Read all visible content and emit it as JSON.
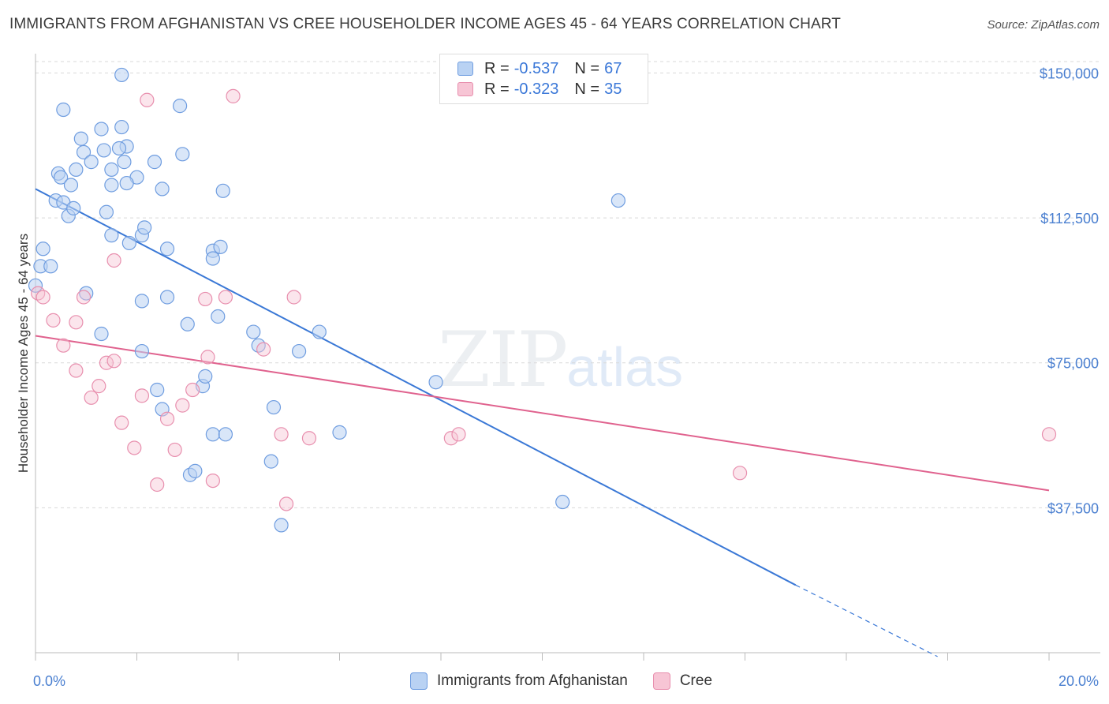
{
  "title": "IMMIGRANTS FROM AFGHANISTAN VS CREE HOUSEHOLDER INCOME AGES 45 - 64 YEARS CORRELATION CHART",
  "source": "Source: ZipAtlas.com",
  "watermark": {
    "zip": "ZIP",
    "atlas": "atlas"
  },
  "colors": {
    "blue": "#4a7fd0",
    "blue_fill": "#b9d2f3",
    "blue_line": "#3a78d6",
    "pink": "#e06a93",
    "pink_fill": "#f7c5d5",
    "pink_line": "#e0628e",
    "tick_label": "#4a7fd0"
  },
  "legend": {
    "rows": [
      {
        "r_label": "R =",
        "r_value": "-0.537",
        "n_label": "N =",
        "n_value": "67"
      },
      {
        "r_label": "R =",
        "r_value": "-0.323",
        "n_label": "N =",
        "n_value": "35"
      }
    ]
  },
  "bottom_legend": [
    "Immigrants from Afghanistan",
    "Cree"
  ],
  "chart_data": {
    "type": "scatter",
    "ylabel": "Householder Income Ages 45 - 64 years",
    "xlabel": "",
    "xlim": [
      0,
      20
    ],
    "ylim": [
      0,
      155000
    ],
    "x_tick_labels": [
      "0.0%",
      "20.0%"
    ],
    "y_ticks": [
      37500,
      75000,
      112500,
      150000
    ],
    "y_tick_labels": [
      "$37,500",
      "$75,000",
      "$112,500",
      "$150,000"
    ],
    "grid": true,
    "series": [
      {
        "name": "Immigrants from Afghanistan",
        "color": "#4a7fd0",
        "points": [
          [
            0.0,
            95000
          ],
          [
            0.1,
            100000
          ],
          [
            0.15,
            104500
          ],
          [
            0.3,
            100000
          ],
          [
            0.4,
            117000
          ],
          [
            0.55,
            116500
          ],
          [
            0.45,
            124000
          ],
          [
            0.5,
            123000
          ],
          [
            0.8,
            125000
          ],
          [
            0.7,
            121000
          ],
          [
            0.65,
            113000
          ],
          [
            0.75,
            115000
          ],
          [
            0.95,
            129500
          ],
          [
            1.3,
            135500
          ],
          [
            0.55,
            140500
          ],
          [
            0.9,
            133000
          ],
          [
            1.1,
            127000
          ],
          [
            1.35,
            130000
          ],
          [
            1.5,
            121000
          ],
          [
            1.8,
            131000
          ],
          [
            1.5,
            125000
          ],
          [
            1.75,
            127000
          ],
          [
            1.7,
            136000
          ],
          [
            2.0,
            123000
          ],
          [
            1.8,
            121500
          ],
          [
            1.65,
            130500
          ],
          [
            1.4,
            114000
          ],
          [
            1.5,
            108000
          ],
          [
            1.85,
            106000
          ],
          [
            2.1,
            108000
          ],
          [
            2.15,
            110000
          ],
          [
            2.5,
            120000
          ],
          [
            2.35,
            127000
          ],
          [
            2.9,
            129000
          ],
          [
            2.85,
            141500
          ],
          [
            1.7,
            149500
          ],
          [
            2.6,
            104500
          ],
          [
            3.7,
            119500
          ],
          [
            3.5,
            104000
          ],
          [
            3.5,
            102000
          ],
          [
            3.65,
            105000
          ],
          [
            3.6,
            87000
          ],
          [
            2.1,
            91000
          ],
          [
            2.6,
            92000
          ],
          [
            3.0,
            85000
          ],
          [
            2.1,
            78000
          ],
          [
            1.3,
            82500
          ],
          [
            3.3,
            69000
          ],
          [
            3.35,
            71500
          ],
          [
            2.5,
            63000
          ],
          [
            2.4,
            68000
          ],
          [
            4.3,
            83000
          ],
          [
            4.4,
            79500
          ],
          [
            5.2,
            78000
          ],
          [
            5.6,
            83000
          ],
          [
            4.7,
            63500
          ],
          [
            3.5,
            56500
          ],
          [
            3.75,
            56500
          ],
          [
            6.0,
            57000
          ],
          [
            4.65,
            49500
          ],
          [
            3.05,
            46000
          ],
          [
            3.15,
            47000
          ],
          [
            4.85,
            33000
          ],
          [
            7.9,
            70000
          ],
          [
            10.4,
            39000
          ],
          [
            11.5,
            117000
          ],
          [
            1.0,
            93000
          ]
        ]
      },
      {
        "name": "Cree",
        "color": "#e06a93",
        "points": [
          [
            0.05,
            93000
          ],
          [
            0.15,
            92000
          ],
          [
            0.35,
            86000
          ],
          [
            0.55,
            79500
          ],
          [
            0.8,
            85500
          ],
          [
            0.8,
            73000
          ],
          [
            0.95,
            92000
          ],
          [
            1.1,
            66000
          ],
          [
            1.25,
            69000
          ],
          [
            1.4,
            75000
          ],
          [
            1.55,
            75500
          ],
          [
            1.55,
            101500
          ],
          [
            1.7,
            59500
          ],
          [
            1.95,
            53000
          ],
          [
            2.1,
            66500
          ],
          [
            2.2,
            143000
          ],
          [
            2.4,
            43500
          ],
          [
            2.6,
            60500
          ],
          [
            2.75,
            52500
          ],
          [
            2.9,
            64000
          ],
          [
            3.1,
            68000
          ],
          [
            3.35,
            91500
          ],
          [
            3.4,
            76500
          ],
          [
            3.5,
            44500
          ],
          [
            3.75,
            92000
          ],
          [
            3.9,
            144000
          ],
          [
            4.5,
            78500
          ],
          [
            4.85,
            56500
          ],
          [
            4.95,
            38500
          ],
          [
            5.1,
            92000
          ],
          [
            5.4,
            55500
          ],
          [
            8.2,
            55500
          ],
          [
            8.35,
            56500
          ],
          [
            13.9,
            46500
          ],
          [
            20.0,
            56500
          ]
        ]
      }
    ],
    "trend_lines": [
      {
        "series": "Immigrants from Afghanistan",
        "from": [
          0.0,
          120000
        ],
        "to": [
          15.0,
          17500
        ],
        "dashed_to": [
          17.8,
          -1000
        ]
      },
      {
        "series": "Cree",
        "from": [
          0.0,
          82000
        ],
        "to": [
          20.0,
          42000
        ]
      }
    ]
  }
}
